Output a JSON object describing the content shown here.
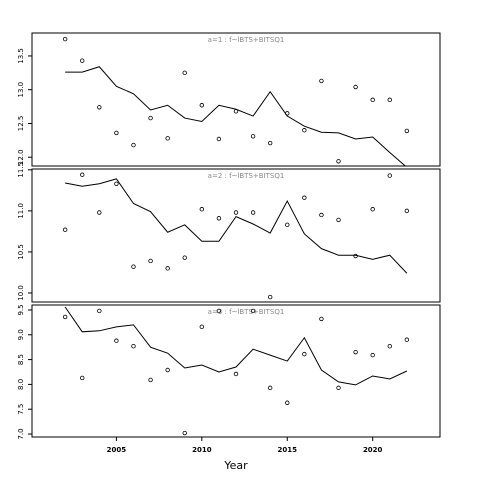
{
  "chart_data": [
    {
      "type": "scatter",
      "title": "a=1 : f~lBTS+BITSQ1",
      "x": [
        2002,
        2003,
        2004,
        2005,
        2006,
        2007,
        2008,
        2009,
        2010,
        2011,
        2012,
        2013,
        2014,
        2015,
        2016,
        2017,
        2018,
        2019,
        2020,
        2021,
        2022
      ],
      "series": [
        {
          "kind": "points",
          "color": "#000000",
          "values": [
            13.75,
            13.43,
            12.74,
            12.36,
            12.18,
            12.58,
            12.28,
            13.25,
            12.77,
            12.27,
            12.68,
            12.31,
            12.21,
            12.65,
            12.4,
            13.13,
            11.94,
            13.04,
            12.85,
            12.85,
            12.39
          ]
        },
        {
          "kind": "line",
          "color": "#000000",
          "values": [
            13.26,
            13.26,
            13.34,
            13.05,
            12.94,
            12.7,
            12.77,
            12.58,
            12.53,
            12.77,
            12.71,
            12.61,
            12.97,
            12.61,
            12.46,
            12.37,
            12.36,
            12.27,
            12.3,
            12.07,
            11.85
          ]
        }
      ],
      "xlim": [
        2000.06,
        2023.94
      ],
      "ylim": [
        11.87,
        13.84
      ],
      "yticks": [
        {
          "value": 12,
          "label": "12.0"
        },
        12.5,
        {
          "value": 13,
          "label": "13.0"
        },
        13.5
      ]
    },
    {
      "type": "scatter",
      "title": "a=2 : f~lBTS+BITSQ1",
      "x": [
        2002,
        2003,
        2004,
        2005,
        2006,
        2007,
        2008,
        2009,
        2010,
        2011,
        2012,
        2013,
        2014,
        2015,
        2016,
        2017,
        2018,
        2019,
        2020,
        2021,
        2022
      ],
      "series": [
        {
          "kind": "points",
          "color": "#000000",
          "values": [
            10.77,
            11.44,
            10.98,
            11.33,
            10.32,
            10.39,
            10.3,
            10.43,
            11.02,
            10.91,
            10.98,
            10.98,
            9.95,
            10.83,
            11.16,
            10.95,
            10.89,
            10.45,
            11.02,
            11.43,
            11.0
          ]
        },
        {
          "kind": "line",
          "color": "#000000",
          "values": [
            11.34,
            11.3,
            11.33,
            11.39,
            11.09,
            10.99,
            10.74,
            10.83,
            10.63,
            10.63,
            10.93,
            10.84,
            10.73,
            11.12,
            10.72,
            10.54,
            10.46,
            10.46,
            10.41,
            10.46,
            10.24
          ]
        }
      ],
      "xlim": [
        2000.06,
        2023.94
      ],
      "ylim": [
        9.89,
        11.51
      ],
      "yticks": [
        {
          "value": 10,
          "label": "10.0"
        },
        10.5,
        {
          "value": 11,
          "label": "11.0"
        },
        11.5
      ]
    },
    {
      "type": "scatter",
      "title": "a=3 : f~lBTS+BITSQ1",
      "xlabel": "Year",
      "x": [
        2002,
        2003,
        2004,
        2005,
        2006,
        2007,
        2008,
        2009,
        2010,
        2011,
        2012,
        2013,
        2014,
        2015,
        2016,
        2017,
        2018,
        2019,
        2020,
        2021,
        2022
      ],
      "series": [
        {
          "kind": "points",
          "color": "#000000",
          "values": [
            9.36,
            8.13,
            9.48,
            8.88,
            8.77,
            8.09,
            8.29,
            7.02,
            9.16,
            9.48,
            8.21,
            9.48,
            7.93,
            7.63,
            8.61,
            9.32,
            7.93,
            8.65,
            8.59,
            8.77,
            8.9
          ]
        },
        {
          "kind": "line",
          "color": "#000000",
          "values": [
            9.56,
            9.06,
            9.08,
            9.16,
            9.2,
            8.75,
            8.63,
            8.33,
            8.39,
            8.25,
            8.35,
            8.71,
            8.59,
            8.47,
            8.94,
            8.29,
            8.05,
            7.99,
            8.17,
            8.11,
            8.27
          ]
        }
      ],
      "xlim": [
        2000.06,
        2023.94
      ],
      "ylim": [
        6.94,
        9.6
      ],
      "xticks": [
        2005,
        2010,
        2015,
        2020
      ],
      "yticks": [
        {
          "value": 7,
          "label": "7.0"
        },
        7.5,
        {
          "value": 8,
          "label": "8.0"
        },
        8.5,
        {
          "value": 9,
          "label": "9.0"
        },
        9.5
      ]
    }
  ]
}
